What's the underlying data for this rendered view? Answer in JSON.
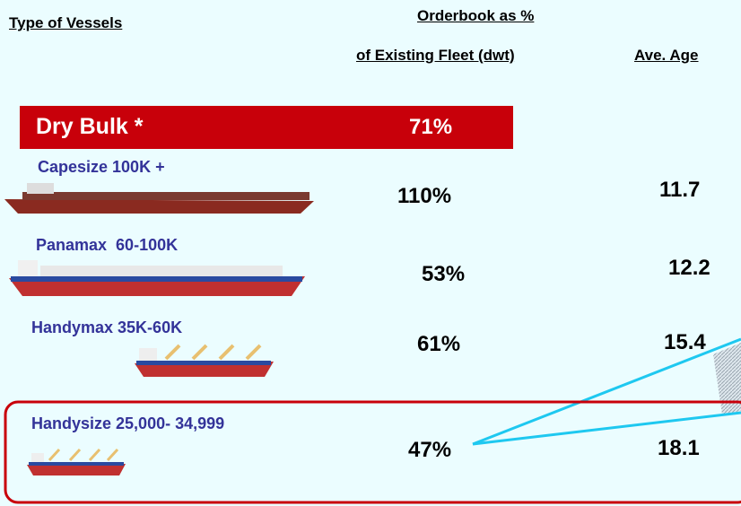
{
  "header": {
    "vessel_type": "Type of Vessels",
    "orderbook_line1": "Orderbook as %",
    "orderbook_line2": "of Existing Fleet (dwt)",
    "age": "Ave. Age"
  },
  "group": {
    "name": "Dry Bulk *",
    "orderbook": "71%"
  },
  "table": {
    "rows": [
      [
        "Capesize 100K +",
        "110%",
        "11.7"
      ],
      [
        "Panamax  60-100K",
        "53%",
        "12.2"
      ],
      [
        "Handymax 35K-60K",
        "61%",
        "15.4"
      ],
      [
        "Handysize 25,000- 34,999",
        "47%",
        "18.1"
      ]
    ]
  }
}
